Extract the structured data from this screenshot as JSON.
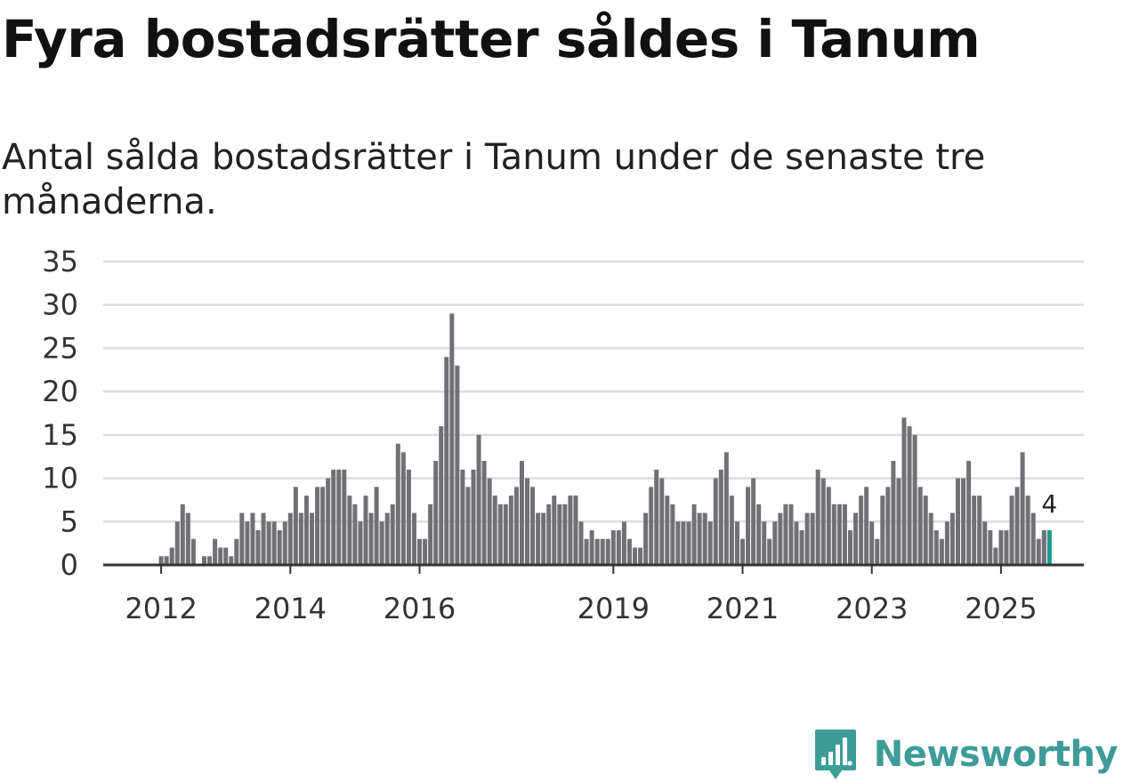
{
  "title": "Fyra bostadsrätter såldes i Tanum",
  "subtitle": "Antal sålda bostadsrätter i Tanum under de senaste tre månaderna.",
  "brand": {
    "name": "Newsworthy",
    "icon": "newsworthy-logo-icon",
    "color": "#3d9c97"
  },
  "chart_data": {
    "type": "bar",
    "title": "Fyra bostadsrätter såldes i Tanum",
    "subtitle": "Antal sålda bostadsrätter i Tanum under de senaste tre månaderna.",
    "xlabel": "",
    "ylabel": "",
    "ylim": [
      0,
      35
    ],
    "yticks": [
      0,
      5,
      10,
      15,
      20,
      25,
      30,
      35
    ],
    "xticks": [
      "2012",
      "2014",
      "2016",
      "2019",
      "2021",
      "2023",
      "2025"
    ],
    "grid": true,
    "bar_color": "#717075",
    "highlight_color": "#1a9b90",
    "start": "2011-11",
    "frequency": "monthly",
    "values": [
      0,
      0,
      1,
      1,
      2,
      5,
      7,
      6,
      3,
      0,
      1,
      1,
      3,
      2,
      2,
      1,
      3,
      6,
      5,
      6,
      4,
      6,
      5,
      5,
      4,
      5,
      6,
      9,
      6,
      8,
      6,
      9,
      9,
      10,
      11,
      11,
      11,
      8,
      7,
      5,
      8,
      6,
      9,
      5,
      6,
      7,
      14,
      13,
      11,
      6,
      3,
      3,
      7,
      12,
      16,
      24,
      29,
      23,
      11,
      9,
      11,
      15,
      12,
      10,
      8,
      7,
      7,
      8,
      9,
      12,
      10,
      9,
      6,
      6,
      7,
      8,
      7,
      7,
      8,
      8,
      5,
      3,
      4,
      3,
      3,
      3,
      4,
      4,
      5,
      3,
      2,
      2,
      6,
      9,
      11,
      10,
      8,
      7,
      5,
      5,
      5,
      7,
      6,
      6,
      5,
      10,
      11,
      13,
      8,
      5,
      3,
      9,
      10,
      7,
      5,
      3,
      5,
      6,
      7,
      7,
      5,
      4,
      6,
      6,
      11,
      10,
      9,
      7,
      7,
      7,
      4,
      6,
      8,
      9,
      5,
      3,
      8,
      9,
      12,
      10,
      17,
      16,
      15,
      9,
      8,
      6,
      4,
      3,
      5,
      6,
      10,
      10,
      12,
      8,
      8,
      5,
      4,
      2,
      4,
      4,
      8,
      9,
      13,
      8,
      6,
      3,
      4,
      4
    ],
    "highlight_last": true,
    "annotation": "4"
  }
}
